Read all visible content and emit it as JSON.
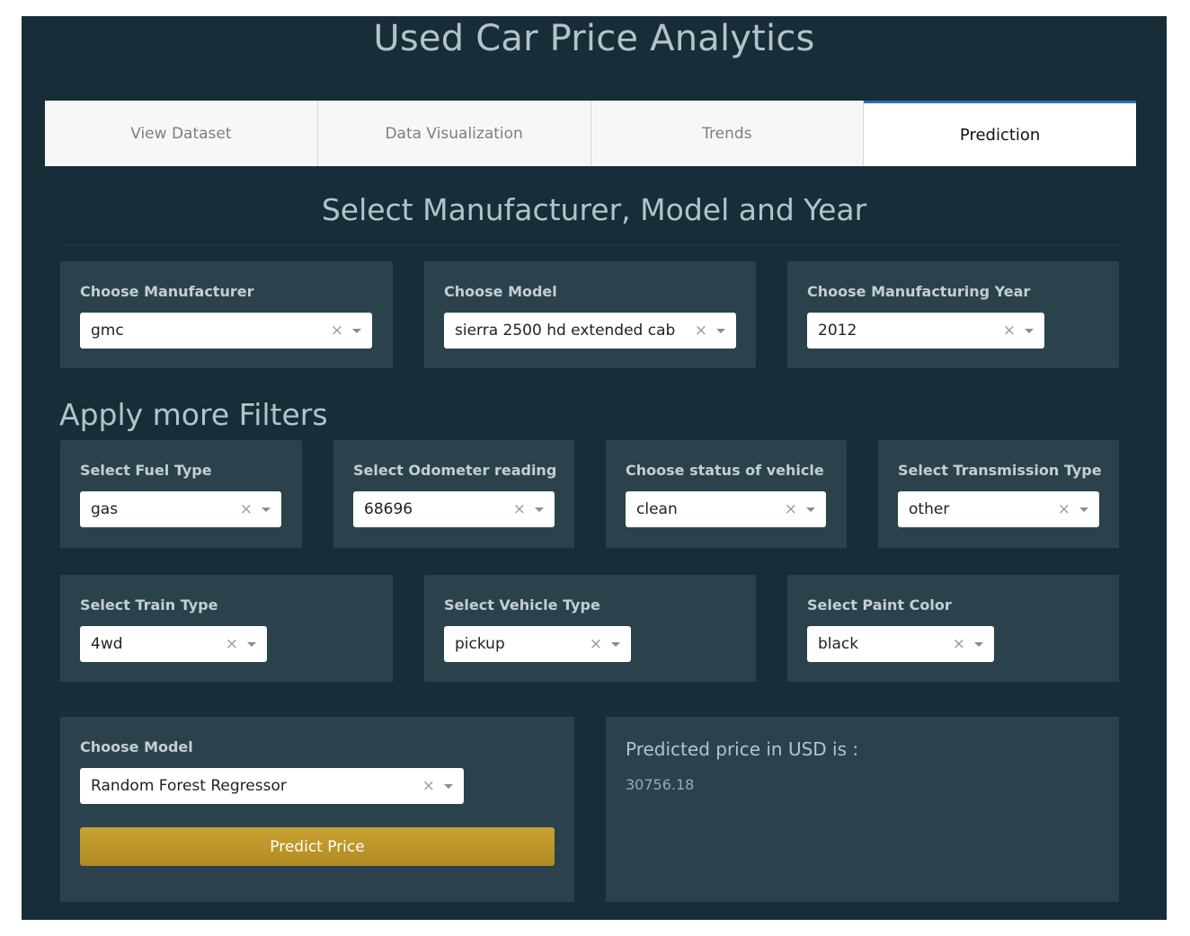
{
  "header": {
    "title": "Used Car Price Analytics"
  },
  "tabs": [
    {
      "label": "View Dataset"
    },
    {
      "label": "Data Visualization"
    },
    {
      "label": "Trends"
    },
    {
      "label": "Prediction"
    }
  ],
  "section1": {
    "title": "Select Manufacturer, Model and Year",
    "manufacturer": {
      "label": "Choose Manufacturer",
      "value": "gmc"
    },
    "model": {
      "label": "Choose Model",
      "value": "sierra 2500 hd extended cab"
    },
    "year": {
      "label": "Choose Manufacturing Year",
      "value": "2012"
    }
  },
  "filters": {
    "title": "Apply more Filters",
    "fuel": {
      "label": "Select Fuel Type",
      "value": "gas"
    },
    "odometer": {
      "label": "Select Odometer reading",
      "value": "68696"
    },
    "status": {
      "label": "Choose status of vehicle",
      "value": "clean"
    },
    "transmission": {
      "label": "Select Transmission Type",
      "value": "other"
    },
    "train": {
      "label": "Select Train Type",
      "value": "4wd"
    },
    "vehicle": {
      "label": "Select Vehicle Type",
      "value": "pickup"
    },
    "paint": {
      "label": "Select Paint Color",
      "value": "black"
    }
  },
  "prediction": {
    "model_label": "Choose Model",
    "model_value": "Random Forest Regressor",
    "button_label": "Predict Price",
    "result_label": "Predicted price in USD is :",
    "result_value": "30756.18"
  },
  "common": {
    "clear_glyph": "×"
  },
  "colors": {
    "background": "#172d38",
    "card": "#2b424c",
    "button": "#c09a2c",
    "active_tab_border": "#2a6fb5"
  }
}
